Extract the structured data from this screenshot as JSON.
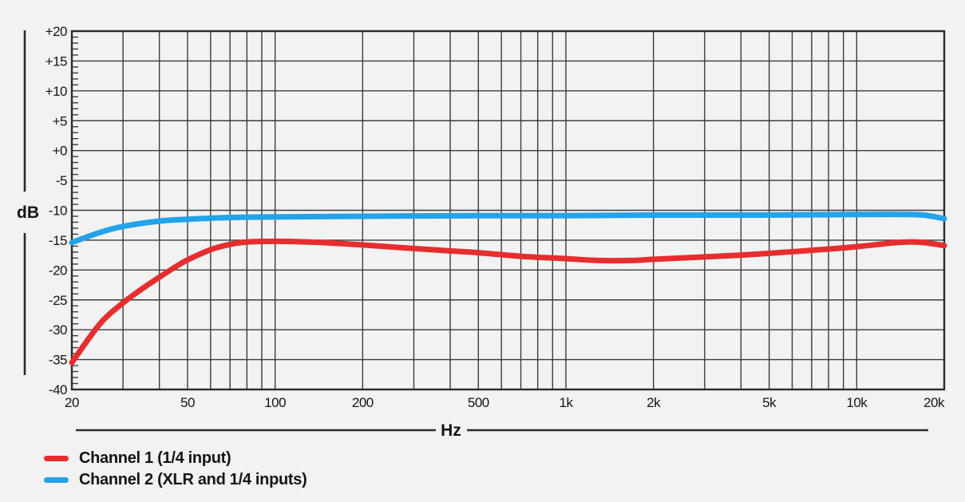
{
  "page": {
    "background_color": "#f2f2f2",
    "grid_color": "#3b3b3b",
    "frame_color": "#2b2b2b",
    "text_color": "#141414"
  },
  "chart_data": {
    "type": "line",
    "title": "",
    "xlabel": "Hz",
    "ylabel": "dB",
    "x_scale": "log",
    "x_range": [
      20,
      20000
    ],
    "y_range": [
      -40,
      20
    ],
    "y_major_step": 5,
    "y_minor_step": 1,
    "grid": true,
    "legend_position": "bottom-left",
    "x_ticks": [
      {
        "value": 20,
        "label": "20"
      },
      {
        "value": 50,
        "label": "50"
      },
      {
        "value": 100,
        "label": "100"
      },
      {
        "value": 200,
        "label": "200"
      },
      {
        "value": 500,
        "label": "500"
      },
      {
        "value": 1000,
        "label": "1k"
      },
      {
        "value": 2000,
        "label": "2k"
      },
      {
        "value": 5000,
        "label": "5k"
      },
      {
        "value": 10000,
        "label": "10k"
      },
      {
        "value": 20000,
        "label": "20k"
      }
    ],
    "x_gridlines": [
      20,
      30,
      40,
      50,
      60,
      70,
      80,
      90,
      100,
      200,
      300,
      400,
      500,
      600,
      700,
      800,
      900,
      1000,
      2000,
      3000,
      4000,
      5000,
      6000,
      7000,
      8000,
      9000,
      10000,
      20000
    ],
    "y_ticks": [
      {
        "value": 20,
        "label": "+20"
      },
      {
        "value": 15,
        "label": "+15"
      },
      {
        "value": 10,
        "label": "+10"
      },
      {
        "value": 5,
        "label": "+5"
      },
      {
        "value": 0,
        "label": "+0"
      },
      {
        "value": -5,
        "label": "-5"
      },
      {
        "value": -10,
        "label": "-10"
      },
      {
        "value": -15,
        "label": "-15"
      },
      {
        "value": -20,
        "label": "-20"
      },
      {
        "value": -25,
        "label": "-25"
      },
      {
        "value": -30,
        "label": "-30"
      },
      {
        "value": -35,
        "label": "-35"
      },
      {
        "value": -40,
        "label": "-40"
      }
    ],
    "series": [
      {
        "name": "Channel 1 (1/4 input)",
        "color": "#e62e2e",
        "points": [
          [
            20,
            -35.5
          ],
          [
            25,
            -29.0
          ],
          [
            30,
            -25.5
          ],
          [
            35,
            -23.1
          ],
          [
            40,
            -21.2
          ],
          [
            45,
            -19.6
          ],
          [
            50,
            -18.3
          ],
          [
            60,
            -16.6
          ],
          [
            70,
            -15.7
          ],
          [
            80,
            -15.3
          ],
          [
            100,
            -15.2
          ],
          [
            130,
            -15.3
          ],
          [
            160,
            -15.5
          ],
          [
            200,
            -15.8
          ],
          [
            300,
            -16.4
          ],
          [
            400,
            -16.8
          ],
          [
            500,
            -17.1
          ],
          [
            700,
            -17.7
          ],
          [
            1000,
            -18.1
          ],
          [
            1300,
            -18.4
          ],
          [
            1700,
            -18.4
          ],
          [
            2000,
            -18.2
          ],
          [
            3000,
            -17.8
          ],
          [
            4000,
            -17.5
          ],
          [
            5000,
            -17.2
          ],
          [
            7000,
            -16.7
          ],
          [
            10000,
            -16.1
          ],
          [
            13000,
            -15.5
          ],
          [
            15000,
            -15.3
          ],
          [
            17000,
            -15.4
          ],
          [
            20000,
            -15.9
          ]
        ]
      },
      {
        "name": "Channel 2 (XLR and 1/4 inputs)",
        "color": "#23a3ea",
        "points": [
          [
            20,
            -15.4
          ],
          [
            25,
            -13.7
          ],
          [
            30,
            -12.7
          ],
          [
            40,
            -11.8
          ],
          [
            50,
            -11.5
          ],
          [
            70,
            -11.2
          ],
          [
            100,
            -11.1
          ],
          [
            200,
            -11.0
          ],
          [
            500,
            -10.9
          ],
          [
            1000,
            -10.9
          ],
          [
            2000,
            -10.8
          ],
          [
            5000,
            -10.8
          ],
          [
            10000,
            -10.7
          ],
          [
            14000,
            -10.7
          ],
          [
            17000,
            -10.8
          ],
          [
            20000,
            -11.4
          ]
        ]
      }
    ]
  }
}
